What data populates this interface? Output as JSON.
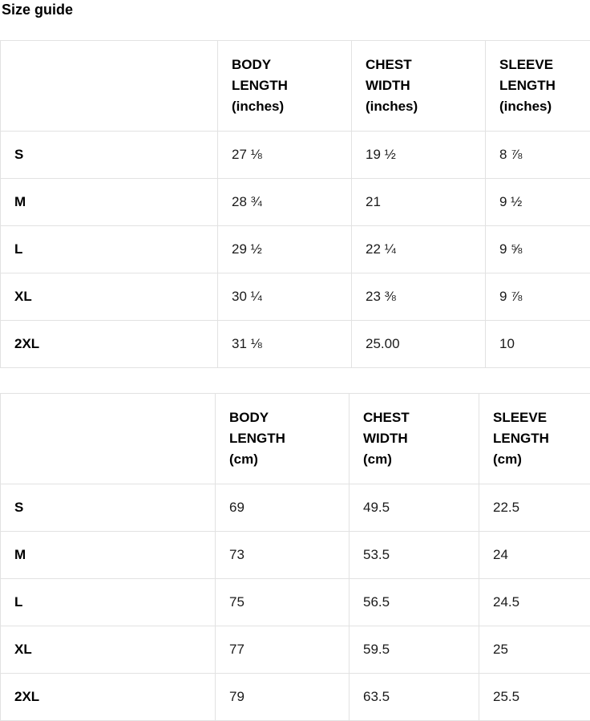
{
  "page": {
    "title": "Size guide"
  },
  "tables": [
    {
      "unit": "inches",
      "headers": [
        {
          "lines": [
            "BODY",
            "LENGTH",
            "(inches)"
          ]
        },
        {
          "lines": [
            "CHEST",
            "WIDTH",
            "(inches)"
          ]
        },
        {
          "lines": [
            "SLEEVE",
            "LENGTH",
            "(inches)"
          ]
        }
      ],
      "rows": [
        {
          "size": "S",
          "body_length": "27 ⅛",
          "chest_width": "19 ½",
          "sleeve_length": "8 ⅞"
        },
        {
          "size": "M",
          "body_length": "28 ¾",
          "chest_width": "21",
          "sleeve_length": "9 ½"
        },
        {
          "size": "L",
          "body_length": "29 ½",
          "chest_width": "22 ¼",
          "sleeve_length": "9 ⅝"
        },
        {
          "size": "XL",
          "body_length": "30 ¼",
          "chest_width": "23 ⅜",
          "sleeve_length": "9 ⅞"
        },
        {
          "size": "2XL",
          "body_length": "31 ⅛",
          "chest_width": "25.00",
          "sleeve_length": "10"
        }
      ]
    },
    {
      "unit": "cm",
      "headers": [
        {
          "lines": [
            "BODY",
            "LENGTH",
            "(cm)"
          ]
        },
        {
          "lines": [
            "CHEST",
            "WIDTH",
            "(cm)"
          ]
        },
        {
          "lines": [
            "SLEEVE",
            "LENGTH",
            "(cm)"
          ]
        }
      ],
      "rows": [
        {
          "size": "S",
          "body_length": "69",
          "chest_width": "49.5",
          "sleeve_length": "22.5"
        },
        {
          "size": "M",
          "body_length": "73",
          "chest_width": "53.5",
          "sleeve_length": "24"
        },
        {
          "size": "L",
          "body_length": "75",
          "chest_width": "56.5",
          "sleeve_length": "24.5"
        },
        {
          "size": "XL",
          "body_length": "77",
          "chest_width": "59.5",
          "sleeve_length": "25"
        },
        {
          "size": "2XL",
          "body_length": "79",
          "chest_width": "63.5",
          "sleeve_length": "25.5"
        }
      ]
    }
  ]
}
